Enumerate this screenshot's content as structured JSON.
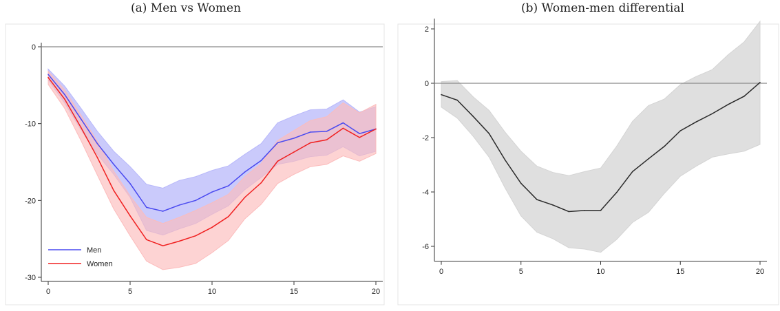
{
  "panels": [
    {
      "title": "(a) Men vs Women"
    },
    {
      "title": "(b) Women-men differential"
    }
  ],
  "chart_data": [
    {
      "type": "line",
      "title": "(a) Men vs Women",
      "xlabel": "",
      "ylabel": "",
      "xlim": [
        0,
        20
      ],
      "ylim": [
        -30,
        0
      ],
      "xticks": [
        0,
        5,
        10,
        15,
        20
      ],
      "yticks": [
        0,
        -10,
        -20,
        -30
      ],
      "reference_line": 0,
      "legend_position": "bottom-left",
      "x": [
        0,
        1,
        2,
        3,
        4,
        5,
        6,
        7,
        8,
        9,
        10,
        11,
        12,
        13,
        14,
        15,
        16,
        17,
        18,
        19,
        20
      ],
      "series": [
        {
          "name": "Men",
          "color": "#4a4af0",
          "band_color": "#b8b8fa",
          "values": [
            -3.6,
            -6.2,
            -9.4,
            -12.6,
            -15.3,
            -17.8,
            -20.9,
            -21.4,
            -20.6,
            -20.0,
            -18.9,
            -18.1,
            -16.3,
            -14.8,
            -12.5,
            -11.9,
            -11.1,
            -11.0,
            -9.9,
            -11.3,
            -10.7
          ],
          "lower": [
            -4.3,
            -7.3,
            -10.8,
            -14.0,
            -16.6,
            -19.6,
            -23.9,
            -24.5,
            -23.7,
            -23.0,
            -21.8,
            -20.7,
            -18.6,
            -17.0,
            -15.3,
            -14.9,
            -14.3,
            -14.1,
            -13.0,
            -14.2,
            -13.6
          ],
          "upper": [
            -2.9,
            -5.1,
            -8.0,
            -11.0,
            -13.6,
            -15.6,
            -17.9,
            -18.4,
            -17.4,
            -16.9,
            -16.1,
            -15.5,
            -14.0,
            -12.6,
            -9.9,
            -9.0,
            -8.2,
            -8.1,
            -6.9,
            -8.5,
            -7.8
          ]
        },
        {
          "name": "Women",
          "color": "#f02020",
          "band_color": "#fcbcbc",
          "values": [
            -4.0,
            -6.8,
            -10.5,
            -14.4,
            -18.7,
            -22.0,
            -25.1,
            -25.9,
            -25.3,
            -24.6,
            -23.5,
            -22.1,
            -19.6,
            -17.7,
            -14.9,
            -13.7,
            -12.5,
            -12.1,
            -10.6,
            -11.8,
            -10.7
          ],
          "lower": [
            -4.9,
            -8.0,
            -12.2,
            -16.7,
            -21.1,
            -24.6,
            -27.9,
            -29.0,
            -28.7,
            -28.2,
            -26.8,
            -25.2,
            -22.4,
            -20.5,
            -17.8,
            -16.6,
            -15.6,
            -15.3,
            -14.2,
            -14.9,
            -13.9
          ],
          "upper": [
            -3.2,
            -5.6,
            -8.9,
            -12.3,
            -16.2,
            -19.4,
            -22.2,
            -23.0,
            -22.2,
            -21.3,
            -20.3,
            -19.2,
            -16.9,
            -15.2,
            -12.2,
            -10.9,
            -9.6,
            -9.1,
            -7.3,
            -8.6,
            -7.5
          ]
        }
      ]
    },
    {
      "type": "line",
      "title": "(b) Women-men differential",
      "xlabel": "",
      "ylabel": "",
      "xlim": [
        0,
        20
      ],
      "ylim": [
        -6.4,
        2.6
      ],
      "xticks": [
        0,
        5,
        10,
        15,
        20
      ],
      "yticks": [
        2,
        0,
        -2,
        -4,
        -6
      ],
      "reference_line": 0,
      "x": [
        0,
        1,
        2,
        3,
        4,
        5,
        6,
        7,
        8,
        9,
        10,
        11,
        12,
        13,
        14,
        15,
        16,
        17,
        18,
        19,
        20
      ],
      "series": [
        {
          "color": "#2a2a2a",
          "band_color": "#d4d4d4",
          "values": [
            -0.42,
            -0.62,
            -1.22,
            -1.85,
            -2.82,
            -3.68,
            -4.28,
            -4.48,
            -4.72,
            -4.68,
            -4.68,
            -4.02,
            -3.25,
            -2.78,
            -2.32,
            -1.75,
            -1.42,
            -1.12,
            -0.78,
            -0.48,
            0.03
          ],
          "lower": [
            -0.88,
            -1.28,
            -1.95,
            -2.72,
            -3.85,
            -4.88,
            -5.48,
            -5.72,
            -6.05,
            -6.1,
            -6.22,
            -5.75,
            -5.12,
            -4.75,
            -4.05,
            -3.42,
            -3.05,
            -2.72,
            -2.6,
            -2.5,
            -2.25
          ],
          "upper": [
            0.06,
            0.1,
            -0.5,
            -1.0,
            -1.8,
            -2.5,
            -3.05,
            -3.28,
            -3.4,
            -3.25,
            -3.12,
            -2.32,
            -1.4,
            -0.82,
            -0.58,
            -0.05,
            0.25,
            0.5,
            1.05,
            1.52,
            2.28
          ]
        }
      ]
    }
  ]
}
